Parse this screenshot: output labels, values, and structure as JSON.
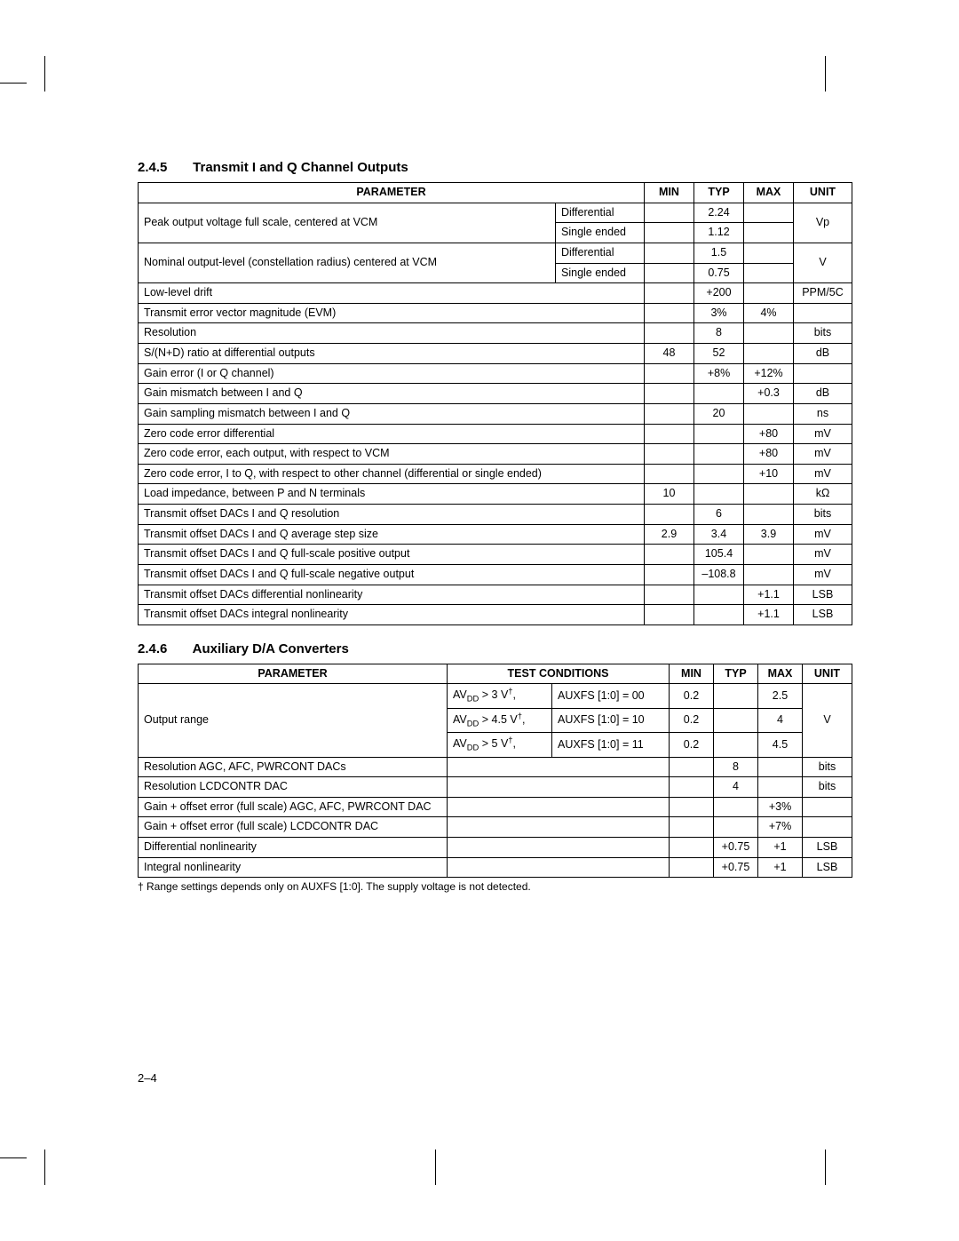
{
  "section1": {
    "number": "2.4.5",
    "title": "Transmit I and Q Channel Outputs",
    "headers": {
      "parameter": "PARAMETER",
      "min": "MIN",
      "typ": "TYP",
      "max": "MAX",
      "unit": "UNIT"
    },
    "rows": {
      "r1_param": "Peak output voltage full scale, centered at VCM",
      "r1a_sub": "Differential",
      "r1a_typ": "2.24",
      "r1b_sub": "Single ended",
      "r1b_typ": "1.12",
      "r1_unit": "Vp",
      "r2_param": "Nominal output-level (constellation radius) centered at VCM",
      "r2a_sub": "Differential",
      "r2a_typ": "1.5",
      "r2b_sub": "Single ended",
      "r2b_typ": "0.75",
      "r2_unit": "V",
      "r3_param": "Low-level drift",
      "r3_typ": "+200",
      "r3_unit": "PPM/5C",
      "r4_param": "Transmit error vector magnitude (EVM)",
      "r4_typ": "3%",
      "r4_max": "4%",
      "r5_param": "Resolution",
      "r5_typ": "8",
      "r5_unit": "bits",
      "r6_param": "S/(N+D) ratio at differential outputs",
      "r6_min": "48",
      "r6_typ": "52",
      "r6_unit": "dB",
      "r7_param": "Gain error (I or Q channel)",
      "r7_typ": "+8%",
      "r7_max": "+12%",
      "r8_param": "Gain mismatch between I and Q",
      "r8_max": "+0.3",
      "r8_unit": "dB",
      "r9_param": "Gain sampling mismatch between I and Q",
      "r9_typ": "20",
      "r9_unit": "ns",
      "r10_param": "Zero code error differential",
      "r10_max": "+80",
      "r10_unit": "mV",
      "r11_param": "Zero code error, each output, with respect to VCM",
      "r11_max": "+80",
      "r11_unit": "mV",
      "r12_param": "Zero code error, I to Q, with respect to other channel (differential or single ended)",
      "r12_max": "+10",
      "r12_unit": "mV",
      "r13_param": "Load impedance, between P and N terminals",
      "r13_min": "10",
      "r13_unit": "kΩ",
      "r14_param": "Transmit offset DACs I and Q resolution",
      "r14_typ": "6",
      "r14_unit": "bits",
      "r15_param": "Transmit offset DACs I and Q average step size",
      "r15_min": "2.9",
      "r15_typ": "3.4",
      "r15_max": "3.9",
      "r15_unit": "mV",
      "r16_param": "Transmit offset DACs I and Q full-scale positive output",
      "r16_typ": "105.4",
      "r16_unit": "mV",
      "r17_param": "Transmit offset DACs I and Q full-scale negative output",
      "r17_typ": "–108.8",
      "r17_unit": "mV",
      "r18_param": "Transmit offset DACs differential nonlinearity",
      "r18_max": "+1.1",
      "r18_unit": "LSB",
      "r19_param": "Transmit offset DACs integral nonlinearity",
      "r19_max": "+1.1",
      "r19_unit": "LSB"
    }
  },
  "section2": {
    "number": "2.4.6",
    "title": "Auxiliary D/A Converters",
    "headers": {
      "parameter": "PARAMETER",
      "test": "TEST CONDITIONS",
      "min": "MIN",
      "typ": "TYP",
      "max": "MAX",
      "unit": "UNIT"
    },
    "rows": {
      "r1_param": "Output range",
      "r1a_tc1_pre": "AV",
      "r1a_tc1_mid": " > 3 V",
      "r1a_tc2": "AUXFS [1:0] = 00",
      "r1a_min": "0.2",
      "r1a_max": "2.5",
      "r1b_tc1_pre": "AV",
      "r1b_tc1_mid": " > 4.5 V",
      "r1b_tc2": "AUXFS [1:0] = 10",
      "r1b_min": "0.2",
      "r1b_max": "4",
      "r1c_tc1_pre": "AV",
      "r1c_tc1_mid": " > 5 V",
      "r1c_tc2": "AUXFS [1:0] = 11",
      "r1c_min": "0.2",
      "r1c_max": "4.5",
      "r1_unit": "V",
      "r2_param": "Resolution AGC, AFC, PWRCONT DACs",
      "r2_typ": "8",
      "r2_unit": "bits",
      "r3_param": "Resolution LCDCONTR DAC",
      "r3_typ": "4",
      "r3_unit": "bits",
      "r4_param": "Gain + offset error (full scale) AGC, AFC, PWRCONT DAC",
      "r4_max": "+3%",
      "r5_param": "Gain + offset error (full scale) LCDCONTR DAC",
      "r5_max": "+7%",
      "r6_param": "Differential nonlinearity",
      "r6_typ": "+0.75",
      "r6_max": "+1",
      "r6_unit": "LSB",
      "r7_param": "Integral nonlinearity",
      "r7_typ": "+0.75",
      "r7_max": "+1",
      "r7_unit": "LSB"
    },
    "footnote": "† Range settings depends only on AUXFS [1:0]. The supply voltage is not detected."
  },
  "pageNumber": "2–4"
}
